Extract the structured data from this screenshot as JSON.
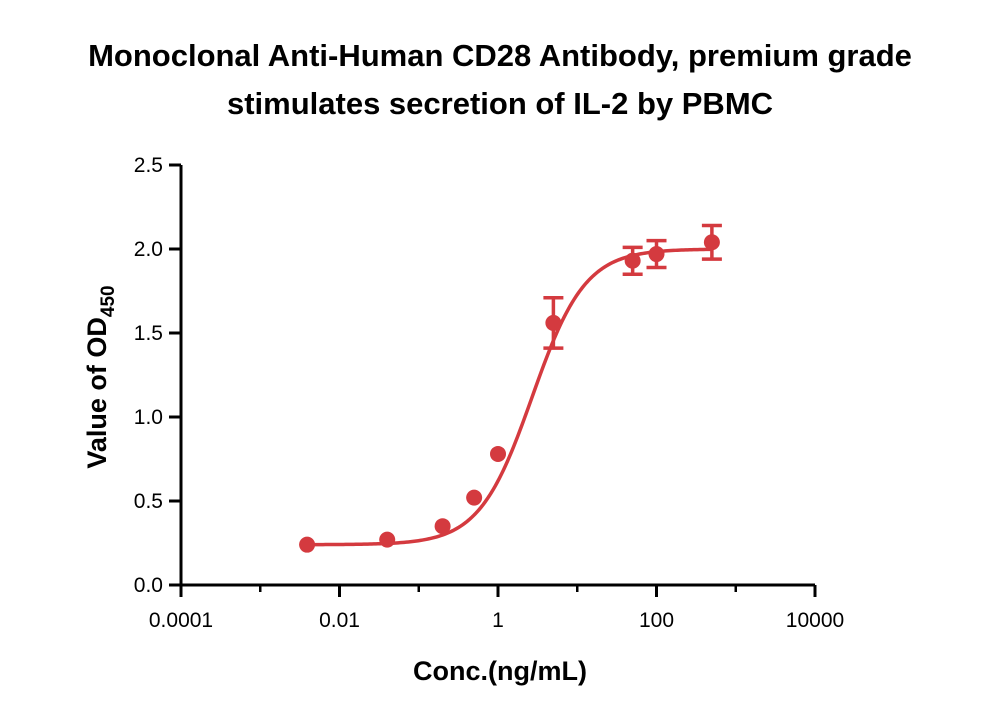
{
  "chart_data": {
    "type": "scatter",
    "title": "Monoclonal Anti-Human CD28 Antibody, premium grade",
    "subtitle": "stimulates secretion of IL-2 by PBMC",
    "xlabel": "Conc.(ng/mL)",
    "ylabel_main": "Value of OD",
    "ylabel_sub": "450",
    "x_scale": "log",
    "xlim": [
      0.0001,
      10000
    ],
    "ylim": [
      0,
      2.5
    ],
    "x_ticks": [
      0.0001,
      0.01,
      1,
      100,
      10000
    ],
    "x_tick_labels": [
      "0.0001",
      "0.01",
      "1",
      "100",
      "10000"
    ],
    "y_ticks": [
      0,
      0.5,
      1.0,
      1.5,
      2.0,
      2.5
    ],
    "y_tick_labels": [
      "0.0",
      "0.5",
      "1.0",
      "1.5",
      "2.0",
      "2.5"
    ],
    "grid": false,
    "legend": "none",
    "color": "#d43a3f",
    "series": [
      {
        "x": [
          0.0039,
          0.04,
          0.2,
          0.5,
          1.0,
          5.0,
          50,
          100,
          500
        ],
        "y": [
          0.24,
          0.27,
          0.35,
          0.52,
          0.78,
          1.56,
          1.93,
          1.97,
          2.04
        ],
        "error": [
          0.0,
          0.0,
          0.0,
          0.0,
          0.0,
          0.15,
          0.08,
          0.08,
          0.1
        ]
      }
    ],
    "fit": {
      "model": "4PL",
      "bottom": 0.24,
      "top": 2.0,
      "ec50": 2.7,
      "hill": 1.3,
      "x_range": [
        0.0039,
        500
      ]
    }
  }
}
